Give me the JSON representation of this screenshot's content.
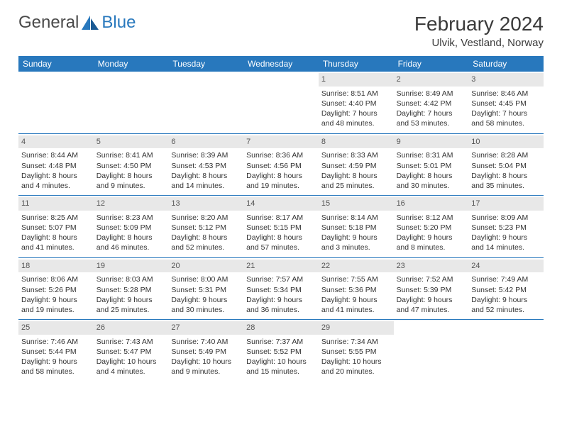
{
  "logo": {
    "text1": "General",
    "text2": "Blue"
  },
  "title": "February 2024",
  "location": "Ulvik, Vestland, Norway",
  "colors": {
    "header_bg": "#2878bd",
    "header_text": "#ffffff",
    "daynum_bg": "#e8e8e8",
    "border": "#2878bd",
    "logo_blue": "#2878bd",
    "logo_gray": "#4a4a4a"
  },
  "day_names": [
    "Sunday",
    "Monday",
    "Tuesday",
    "Wednesday",
    "Thursday",
    "Friday",
    "Saturday"
  ],
  "weeks": [
    [
      null,
      null,
      null,
      null,
      {
        "n": "1",
        "sr": "8:51 AM",
        "ss": "4:40 PM",
        "dl1": "Daylight: 7 hours",
        "dl2": "and 48 minutes."
      },
      {
        "n": "2",
        "sr": "8:49 AM",
        "ss": "4:42 PM",
        "dl1": "Daylight: 7 hours",
        "dl2": "and 53 minutes."
      },
      {
        "n": "3",
        "sr": "8:46 AM",
        "ss": "4:45 PM",
        "dl1": "Daylight: 7 hours",
        "dl2": "and 58 minutes."
      }
    ],
    [
      {
        "n": "4",
        "sr": "8:44 AM",
        "ss": "4:48 PM",
        "dl1": "Daylight: 8 hours",
        "dl2": "and 4 minutes."
      },
      {
        "n": "5",
        "sr": "8:41 AM",
        "ss": "4:50 PM",
        "dl1": "Daylight: 8 hours",
        "dl2": "and 9 minutes."
      },
      {
        "n": "6",
        "sr": "8:39 AM",
        "ss": "4:53 PM",
        "dl1": "Daylight: 8 hours",
        "dl2": "and 14 minutes."
      },
      {
        "n": "7",
        "sr": "8:36 AM",
        "ss": "4:56 PM",
        "dl1": "Daylight: 8 hours",
        "dl2": "and 19 minutes."
      },
      {
        "n": "8",
        "sr": "8:33 AM",
        "ss": "4:59 PM",
        "dl1": "Daylight: 8 hours",
        "dl2": "and 25 minutes."
      },
      {
        "n": "9",
        "sr": "8:31 AM",
        "ss": "5:01 PM",
        "dl1": "Daylight: 8 hours",
        "dl2": "and 30 minutes."
      },
      {
        "n": "10",
        "sr": "8:28 AM",
        "ss": "5:04 PM",
        "dl1": "Daylight: 8 hours",
        "dl2": "and 35 minutes."
      }
    ],
    [
      {
        "n": "11",
        "sr": "8:25 AM",
        "ss": "5:07 PM",
        "dl1": "Daylight: 8 hours",
        "dl2": "and 41 minutes."
      },
      {
        "n": "12",
        "sr": "8:23 AM",
        "ss": "5:09 PM",
        "dl1": "Daylight: 8 hours",
        "dl2": "and 46 minutes."
      },
      {
        "n": "13",
        "sr": "8:20 AM",
        "ss": "5:12 PM",
        "dl1": "Daylight: 8 hours",
        "dl2": "and 52 minutes."
      },
      {
        "n": "14",
        "sr": "8:17 AM",
        "ss": "5:15 PM",
        "dl1": "Daylight: 8 hours",
        "dl2": "and 57 minutes."
      },
      {
        "n": "15",
        "sr": "8:14 AM",
        "ss": "5:18 PM",
        "dl1": "Daylight: 9 hours",
        "dl2": "and 3 minutes."
      },
      {
        "n": "16",
        "sr": "8:12 AM",
        "ss": "5:20 PM",
        "dl1": "Daylight: 9 hours",
        "dl2": "and 8 minutes."
      },
      {
        "n": "17",
        "sr": "8:09 AM",
        "ss": "5:23 PM",
        "dl1": "Daylight: 9 hours",
        "dl2": "and 14 minutes."
      }
    ],
    [
      {
        "n": "18",
        "sr": "8:06 AM",
        "ss": "5:26 PM",
        "dl1": "Daylight: 9 hours",
        "dl2": "and 19 minutes."
      },
      {
        "n": "19",
        "sr": "8:03 AM",
        "ss": "5:28 PM",
        "dl1": "Daylight: 9 hours",
        "dl2": "and 25 minutes."
      },
      {
        "n": "20",
        "sr": "8:00 AM",
        "ss": "5:31 PM",
        "dl1": "Daylight: 9 hours",
        "dl2": "and 30 minutes."
      },
      {
        "n": "21",
        "sr": "7:57 AM",
        "ss": "5:34 PM",
        "dl1": "Daylight: 9 hours",
        "dl2": "and 36 minutes."
      },
      {
        "n": "22",
        "sr": "7:55 AM",
        "ss": "5:36 PM",
        "dl1": "Daylight: 9 hours",
        "dl2": "and 41 minutes."
      },
      {
        "n": "23",
        "sr": "7:52 AM",
        "ss": "5:39 PM",
        "dl1": "Daylight: 9 hours",
        "dl2": "and 47 minutes."
      },
      {
        "n": "24",
        "sr": "7:49 AM",
        "ss": "5:42 PM",
        "dl1": "Daylight: 9 hours",
        "dl2": "and 52 minutes."
      }
    ],
    [
      {
        "n": "25",
        "sr": "7:46 AM",
        "ss": "5:44 PM",
        "dl1": "Daylight: 9 hours",
        "dl2": "and 58 minutes."
      },
      {
        "n": "26",
        "sr": "7:43 AM",
        "ss": "5:47 PM",
        "dl1": "Daylight: 10 hours",
        "dl2": "and 4 minutes."
      },
      {
        "n": "27",
        "sr": "7:40 AM",
        "ss": "5:49 PM",
        "dl1": "Daylight: 10 hours",
        "dl2": "and 9 minutes."
      },
      {
        "n": "28",
        "sr": "7:37 AM",
        "ss": "5:52 PM",
        "dl1": "Daylight: 10 hours",
        "dl2": "and 15 minutes."
      },
      {
        "n": "29",
        "sr": "7:34 AM",
        "ss": "5:55 PM",
        "dl1": "Daylight: 10 hours",
        "dl2": "and 20 minutes."
      },
      null,
      null
    ]
  ],
  "labels": {
    "sunrise_prefix": "Sunrise: ",
    "sunset_prefix": "Sunset: "
  }
}
